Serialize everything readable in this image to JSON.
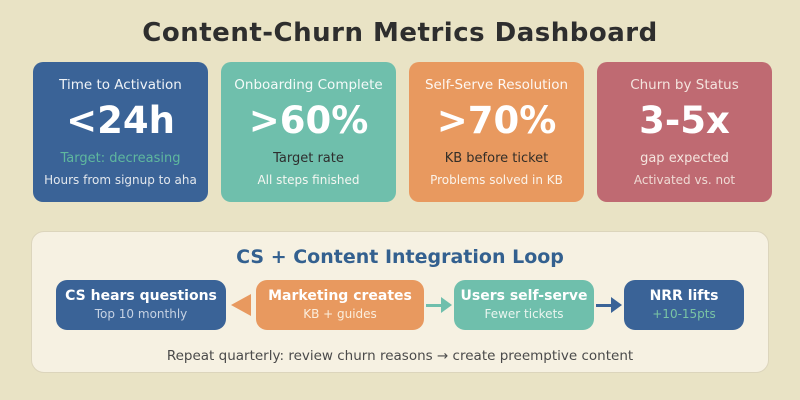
{
  "title": "Content-Churn Metrics Dashboard",
  "colors": {
    "page_background": "#E9E3C5",
    "panel_background": "#F6F1E2",
    "blue": "#3A6397",
    "teal": "#6FBFAC",
    "orange": "#E8995F",
    "rose": "#BF6A72",
    "loop_title_blue": "#33608F",
    "title_text": "#2E2E2E",
    "note_text": "#4A4A4A",
    "accent_green": "#5FB89E"
  },
  "cards": [
    {
      "title": "Time to Activation",
      "value": "<24h",
      "sub1": "Target: decreasing",
      "sub2": "Hours from signup to aha",
      "bg": "#3A6397"
    },
    {
      "title": "Onboarding Complete",
      "value": ">60%",
      "sub1": "Target rate",
      "sub2": "All steps finished",
      "bg": "#6FBFAC"
    },
    {
      "title": "Self-Serve Resolution",
      "value": ">70%",
      "sub1": "KB before ticket",
      "sub2": "Problems solved in KB",
      "bg": "#E8995F"
    },
    {
      "title": "Churn by Status",
      "value": "3-5x",
      "sub1": "gap expected",
      "sub2": "Activated vs. not",
      "bg": "#BF6A72"
    }
  ],
  "loop": {
    "title": "CS + Content Integration Loop",
    "steps": [
      {
        "title": "CS hears questions",
        "sub": "Top 10 monthly",
        "bg": "#3A6397"
      },
      {
        "title": "Marketing creates",
        "sub": "KB + guides",
        "bg": "#E8995F"
      },
      {
        "title": "Users self-serve",
        "sub": "Fewer tickets",
        "bg": "#6FBFAC"
      },
      {
        "title": "NRR lifts",
        "sub": "+10-15pts",
        "bg": "#3A6397"
      }
    ],
    "arrows": [
      {
        "direction": "left",
        "color": "#E8995F"
      },
      {
        "direction": "right",
        "color": "#6FBFAC"
      },
      {
        "direction": "right",
        "color": "#3A6397"
      }
    ],
    "note": "Repeat quarterly: review churn reasons → create preemptive content"
  }
}
